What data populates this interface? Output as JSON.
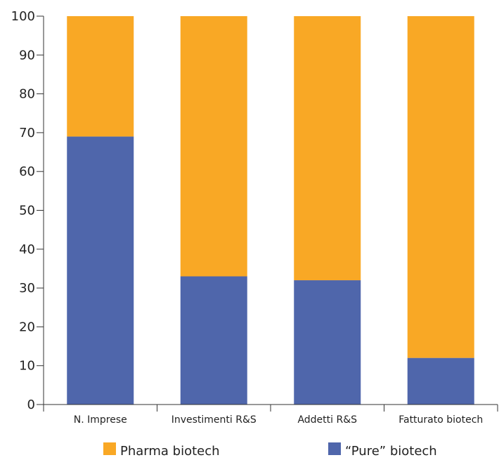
{
  "chart_data": {
    "type": "bar",
    "stacked": true,
    "categories": [
      "N. Imprese",
      "Investimenti R&S",
      "Addetti R&S",
      "Fatturato biotech"
    ],
    "series": [
      {
        "name": "“Pure” biotech",
        "values": [
          69,
          33,
          32,
          12
        ],
        "color": "#4f66ab"
      },
      {
        "name": "Pharma biotech",
        "values": [
          31,
          67,
          68,
          88
        ],
        "color": "#f9a825"
      }
    ],
    "ylim": [
      0,
      100
    ],
    "yticks": [
      0,
      10,
      20,
      30,
      40,
      50,
      60,
      70,
      80,
      90,
      100
    ],
    "grid": false,
    "legend": {
      "placement": "bottom",
      "order": [
        "Pharma biotech",
        "“Pure” biotech"
      ]
    }
  }
}
